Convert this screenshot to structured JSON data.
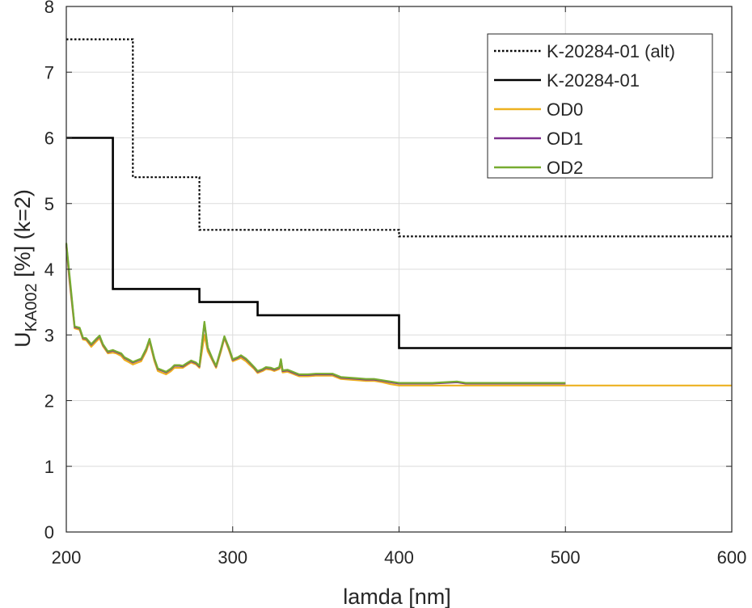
{
  "chart_data": {
    "type": "line",
    "title": "",
    "xlabel": "lamda [nm]",
    "ylabel": {
      "base": "U",
      "subscript": "KA002",
      "suffix": " [%] (k=2)"
    },
    "xlim": [
      200,
      600
    ],
    "ylim": [
      0,
      8
    ],
    "x_ticks": [
      200,
      300,
      400,
      500,
      600
    ],
    "y_ticks": [
      0,
      1,
      2,
      3,
      4,
      5,
      6,
      7,
      8
    ],
    "grid": true,
    "legend_position": "top-right",
    "series": [
      {
        "name": "K-20284-01 (alt)",
        "color": "#000000",
        "style": "dotted",
        "x": [
          200,
          240,
          240,
          280,
          280,
          400,
          400,
          600
        ],
        "y": [
          7.5,
          7.5,
          5.4,
          5.4,
          4.6,
          4.6,
          4.5,
          4.5
        ]
      },
      {
        "name": "K-20284-01",
        "color": "#000000",
        "style": "solid",
        "x": [
          200,
          228,
          228,
          280,
          280,
          315,
          315,
          400,
          400,
          600
        ],
        "y": [
          6.0,
          6.0,
          3.7,
          3.7,
          3.5,
          3.5,
          3.3,
          3.3,
          2.8,
          2.8
        ]
      },
      {
        "name": "OD0",
        "color": "#EDB120",
        "style": "solid",
        "x": [
          200,
          202,
          205,
          208,
          210,
          212,
          215,
          218,
          220,
          222,
          225,
          228,
          230,
          233,
          235,
          238,
          240,
          243,
          245,
          248,
          250,
          253,
          255,
          258,
          260,
          263,
          265,
          268,
          270,
          273,
          275,
          278,
          280,
          283,
          285,
          288,
          290,
          293,
          295,
          298,
          300,
          303,
          305,
          308,
          310,
          313,
          315,
          318,
          320,
          323,
          325,
          328,
          329,
          330,
          333,
          335,
          338,
          340,
          345,
          350,
          355,
          360,
          365,
          370,
          375,
          380,
          385,
          390,
          395,
          400,
          420,
          440,
          460,
          480,
          500,
          550,
          600
        ],
        "y": [
          4.35,
          3.8,
          3.1,
          3.08,
          2.93,
          2.92,
          2.82,
          2.9,
          2.95,
          2.83,
          2.72,
          2.73,
          2.72,
          2.68,
          2.62,
          2.58,
          2.55,
          2.58,
          2.6,
          2.75,
          2.9,
          2.6,
          2.45,
          2.42,
          2.4,
          2.45,
          2.5,
          2.5,
          2.5,
          2.55,
          2.58,
          2.55,
          2.5,
          3.0,
          2.75,
          2.6,
          2.5,
          2.75,
          2.95,
          2.75,
          2.6,
          2.63,
          2.65,
          2.6,
          2.55,
          2.48,
          2.42,
          2.45,
          2.48,
          2.47,
          2.45,
          2.48,
          2.55,
          2.43,
          2.44,
          2.42,
          2.39,
          2.37,
          2.37,
          2.38,
          2.38,
          2.38,
          2.33,
          2.32,
          2.31,
          2.3,
          2.3,
          2.28,
          2.25,
          2.23,
          2.23,
          2.23,
          2.23,
          2.23,
          2.23,
          2.23,
          2.23
        ]
      },
      {
        "name": "OD1",
        "color": "#7E2F8E",
        "style": "solid",
        "x": [
          200,
          202,
          205,
          208,
          210,
          212,
          215,
          218,
          220,
          222,
          225,
          228,
          230,
          233,
          235,
          238,
          240,
          243,
          245,
          248,
          250,
          253,
          255,
          258,
          260,
          263,
          265,
          268,
          270,
          273,
          275,
          278,
          280,
          283,
          285,
          288,
          290,
          293,
          295,
          298,
          300,
          303,
          305,
          308,
          310,
          313,
          315,
          318,
          320,
          323,
          325,
          328,
          329,
          330,
          333,
          335,
          338,
          340,
          345,
          350,
          355,
          360,
          365,
          370,
          375,
          380,
          385,
          390,
          395,
          400,
          420,
          435,
          440,
          460,
          480,
          500
        ],
        "y": [
          4.38,
          3.85,
          3.12,
          3.1,
          2.95,
          2.94,
          2.85,
          2.93,
          2.98,
          2.85,
          2.74,
          2.76,
          2.74,
          2.71,
          2.65,
          2.61,
          2.58,
          2.61,
          2.63,
          2.78,
          2.93,
          2.63,
          2.48,
          2.45,
          2.43,
          2.48,
          2.53,
          2.53,
          2.52,
          2.57,
          2.6,
          2.57,
          2.52,
          3.18,
          2.8,
          2.62,
          2.52,
          2.78,
          2.97,
          2.78,
          2.62,
          2.65,
          2.68,
          2.63,
          2.58,
          2.5,
          2.44,
          2.47,
          2.5,
          2.49,
          2.47,
          2.5,
          2.62,
          2.45,
          2.46,
          2.44,
          2.41,
          2.39,
          2.39,
          2.4,
          2.4,
          2.4,
          2.35,
          2.34,
          2.33,
          2.32,
          2.32,
          2.3,
          2.28,
          2.26,
          2.26,
          2.28,
          2.26,
          2.26,
          2.26,
          2.26
        ]
      },
      {
        "name": "OD2",
        "color": "#77AC30",
        "style": "solid",
        "x": [
          200,
          202,
          205,
          208,
          210,
          212,
          215,
          218,
          220,
          222,
          225,
          228,
          230,
          233,
          235,
          238,
          240,
          243,
          245,
          248,
          250,
          253,
          255,
          258,
          260,
          263,
          265,
          268,
          270,
          273,
          275,
          278,
          280,
          283,
          285,
          288,
          290,
          293,
          295,
          298,
          300,
          303,
          305,
          308,
          310,
          313,
          315,
          318,
          320,
          323,
          325,
          328,
          329,
          330,
          333,
          335,
          338,
          340,
          345,
          350,
          355,
          360,
          365,
          370,
          375,
          380,
          385,
          390,
          395,
          400,
          420,
          435,
          440,
          460,
          480,
          500
        ],
        "y": [
          4.4,
          3.9,
          3.13,
          3.11,
          2.96,
          2.95,
          2.86,
          2.94,
          2.99,
          2.86,
          2.75,
          2.77,
          2.75,
          2.72,
          2.66,
          2.62,
          2.59,
          2.62,
          2.64,
          2.79,
          2.94,
          2.64,
          2.49,
          2.46,
          2.44,
          2.49,
          2.54,
          2.54,
          2.53,
          2.58,
          2.61,
          2.58,
          2.53,
          3.2,
          2.81,
          2.63,
          2.53,
          2.79,
          2.98,
          2.79,
          2.63,
          2.66,
          2.69,
          2.64,
          2.59,
          2.51,
          2.45,
          2.48,
          2.51,
          2.5,
          2.48,
          2.51,
          2.63,
          2.46,
          2.47,
          2.45,
          2.42,
          2.4,
          2.4,
          2.41,
          2.41,
          2.41,
          2.36,
          2.35,
          2.34,
          2.33,
          2.33,
          2.31,
          2.29,
          2.27,
          2.27,
          2.29,
          2.27,
          2.27,
          2.27,
          2.27
        ]
      }
    ]
  }
}
